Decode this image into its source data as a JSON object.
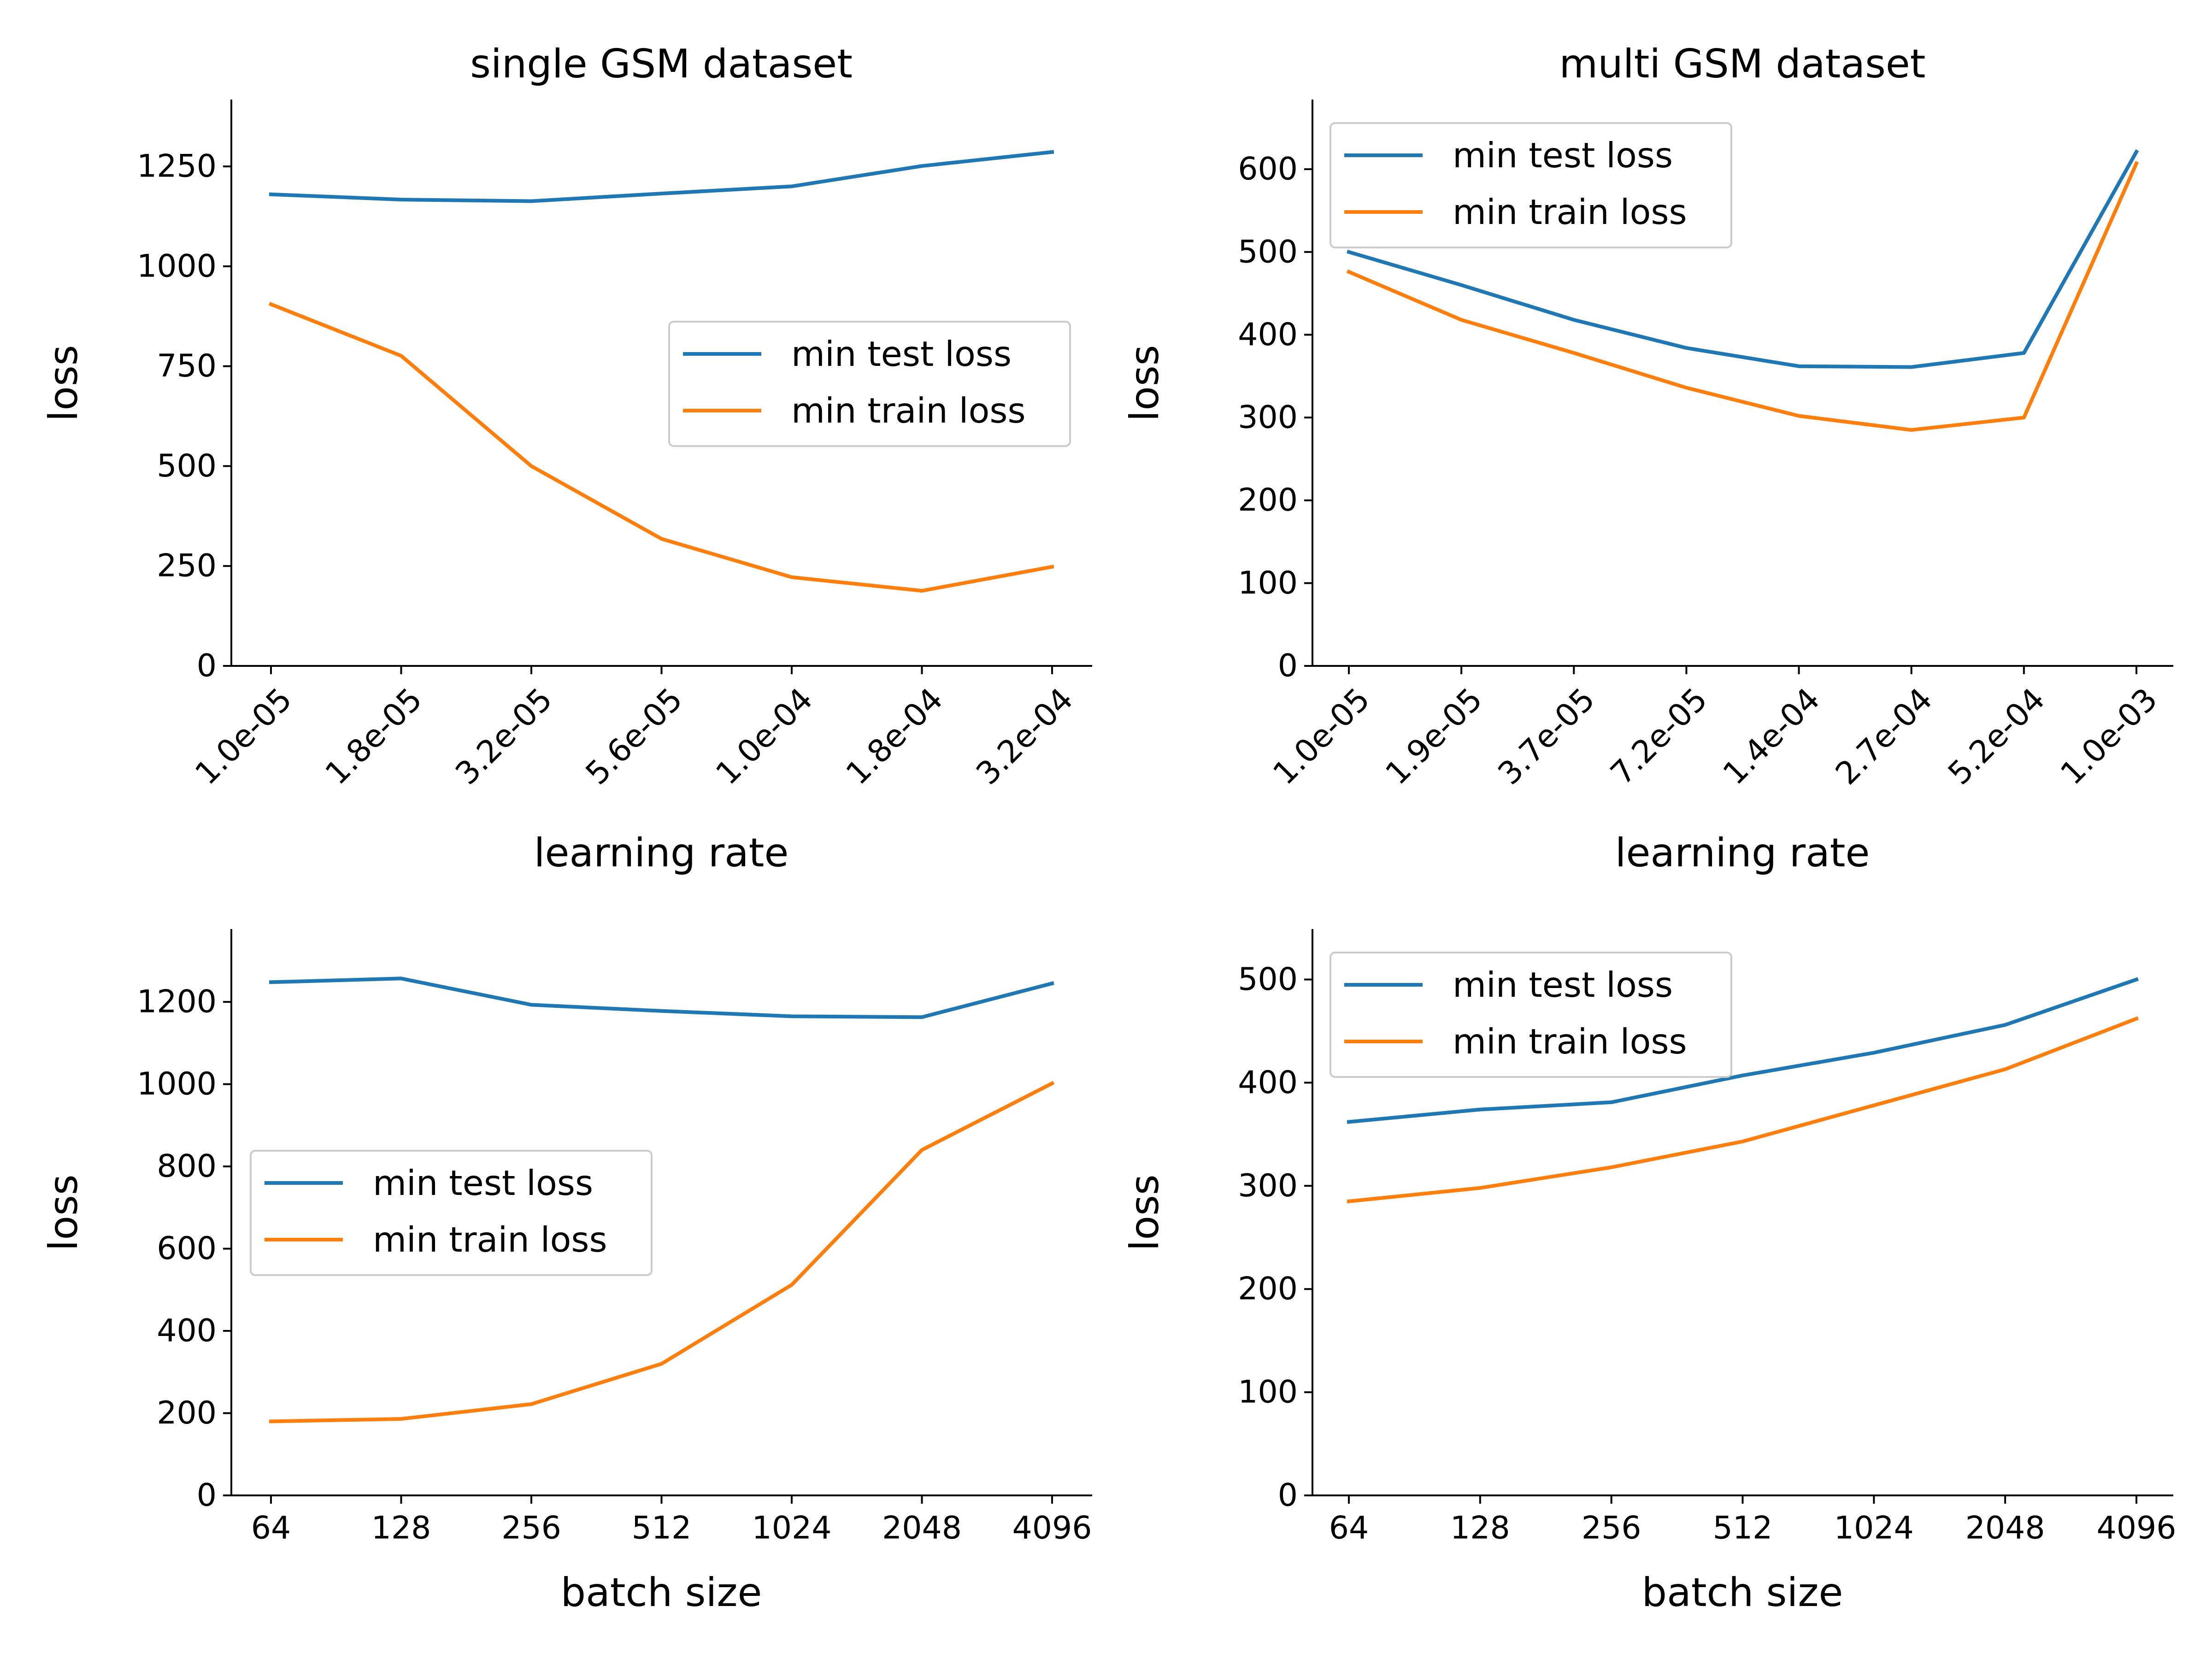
{
  "colors": {
    "test": "#1f77b4",
    "train": "#ff7f0e"
  },
  "chart_data": [
    {
      "type": "line",
      "title": "single GSM dataset",
      "xlabel": "learning rate",
      "ylabel": "loss",
      "categories": [
        "1.0e-05",
        "1.8e-05",
        "3.2e-05",
        "5.6e-05",
        "1.0e-04",
        "1.8e-04",
        "3.2e-04"
      ],
      "yticks": [
        0,
        250,
        500,
        750,
        1000,
        1250
      ],
      "ylim": [
        0,
        1415
      ],
      "rotate_xticks": true,
      "legend": "center-right",
      "series": [
        {
          "name": "min test loss",
          "color": "#1f77b4",
          "values": [
            1180,
            1167,
            1163,
            1182,
            1200,
            1251,
            1286
          ]
        },
        {
          "name": "min train loss",
          "color": "#ff7f0e",
          "values": [
            905,
            776,
            500,
            318,
            222,
            188,
            248
          ]
        }
      ]
    },
    {
      "type": "line",
      "title": "multi GSM dataset",
      "xlabel": "learning rate",
      "ylabel": "loss",
      "categories": [
        "1.0e-05",
        "1.9e-05",
        "3.7e-05",
        "7.2e-05",
        "1.4e-04",
        "2.7e-04",
        "5.2e-04",
        "1.0e-03"
      ],
      "yticks": [
        0,
        100,
        200,
        300,
        400,
        500,
        600
      ],
      "ylim": [
        0,
        683
      ],
      "rotate_xticks": true,
      "legend": "upper-left",
      "series": [
        {
          "name": "min test loss",
          "color": "#1f77b4",
          "values": [
            500,
            460,
            418,
            384,
            362,
            361,
            378,
            621
          ]
        },
        {
          "name": "min train loss",
          "color": "#ff7f0e",
          "values": [
            476,
            418,
            378,
            336,
            302,
            285,
            300,
            607
          ]
        }
      ]
    },
    {
      "type": "line",
      "title": "",
      "xlabel": "batch size",
      "ylabel": "loss",
      "categories": [
        "64",
        "128",
        "256",
        "512",
        "1024",
        "2048",
        "4096"
      ],
      "yticks": [
        0,
        200,
        400,
        600,
        800,
        1000,
        1200
      ],
      "ylim": [
        0,
        1375
      ],
      "rotate_xticks": false,
      "legend": "center-left",
      "series": [
        {
          "name": "min test loss",
          "color": "#1f77b4",
          "values": [
            1248,
            1257,
            1193,
            1178,
            1165,
            1163,
            1245
          ]
        },
        {
          "name": "min train loss",
          "color": "#ff7f0e",
          "values": [
            180,
            186,
            222,
            320,
            512,
            840,
            1002
          ]
        }
      ]
    },
    {
      "type": "line",
      "title": "",
      "xlabel": "batch size",
      "ylabel": "loss",
      "categories": [
        "64",
        "128",
        "256",
        "512",
        "1024",
        "2048",
        "4096"
      ],
      "yticks": [
        0,
        100,
        200,
        300,
        400,
        500
      ],
      "ylim": [
        0,
        548
      ],
      "rotate_xticks": false,
      "legend": "upper-left",
      "series": [
        {
          "name": "min test loss",
          "color": "#1f77b4",
          "values": [
            362,
            374,
            381,
            407,
            429,
            456,
            500
          ]
        },
        {
          "name": "min train loss",
          "color": "#ff7f0e",
          "values": [
            285,
            298,
            318,
            343,
            378,
            413,
            462
          ]
        }
      ]
    }
  ]
}
